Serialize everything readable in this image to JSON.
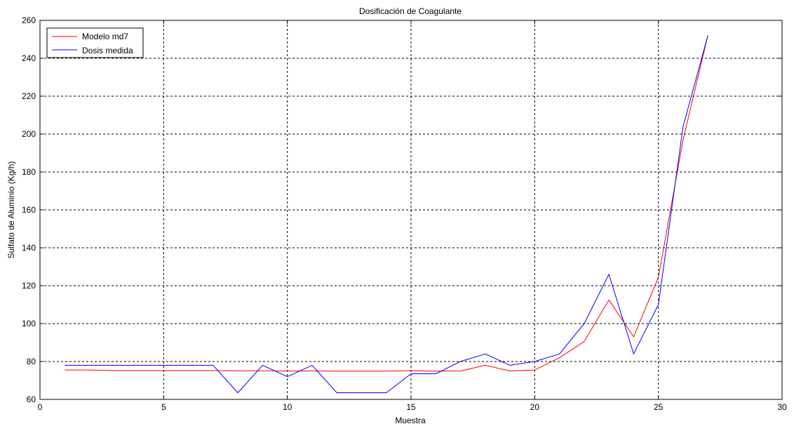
{
  "chart_data": {
    "type": "line",
    "title": "Dosificación de Coagulante",
    "xlabel": "Muestra",
    "ylabel": "Sulfato de Aluminio (Kg/h)",
    "xlim": [
      0,
      30
    ],
    "ylim": [
      60,
      260
    ],
    "xticks": [
      0,
      5,
      10,
      15,
      20,
      25,
      30
    ],
    "yticks": [
      60,
      80,
      100,
      120,
      140,
      160,
      180,
      200,
      220,
      240,
      260
    ],
    "grid": true,
    "legend_position": "top-left",
    "x": [
      1,
      2,
      3,
      4,
      5,
      6,
      7,
      8,
      9,
      10,
      11,
      12,
      13,
      14,
      15,
      16,
      17,
      18,
      19,
      20,
      21,
      22,
      23,
      24,
      25,
      26,
      27
    ],
    "series": [
      {
        "name": "Modelo md7",
        "color": "#ff0000",
        "values": [
          75.5,
          75.5,
          75.2,
          75.2,
          75.2,
          75.2,
          75.2,
          75.1,
          75.1,
          75.0,
          75.0,
          74.9,
          74.9,
          74.9,
          75.2,
          74.9,
          75.0,
          78.0,
          75.0,
          75.5,
          82.0,
          90.5,
          112.5,
          93.0,
          124.5,
          197.0,
          252.0
        ]
      },
      {
        "name": "Dosis medida",
        "color": "#0000ff",
        "values": [
          78.0,
          78.0,
          78.0,
          78.0,
          78.0,
          78.0,
          78.0,
          63.5,
          78.0,
          72.0,
          78.0,
          63.5,
          63.5,
          63.5,
          73.5,
          73.5,
          80.0,
          84.0,
          78.0,
          80.0,
          84.0,
          100.0,
          126.0,
          84.0,
          110.0,
          204.0,
          252.0
        ]
      }
    ]
  }
}
